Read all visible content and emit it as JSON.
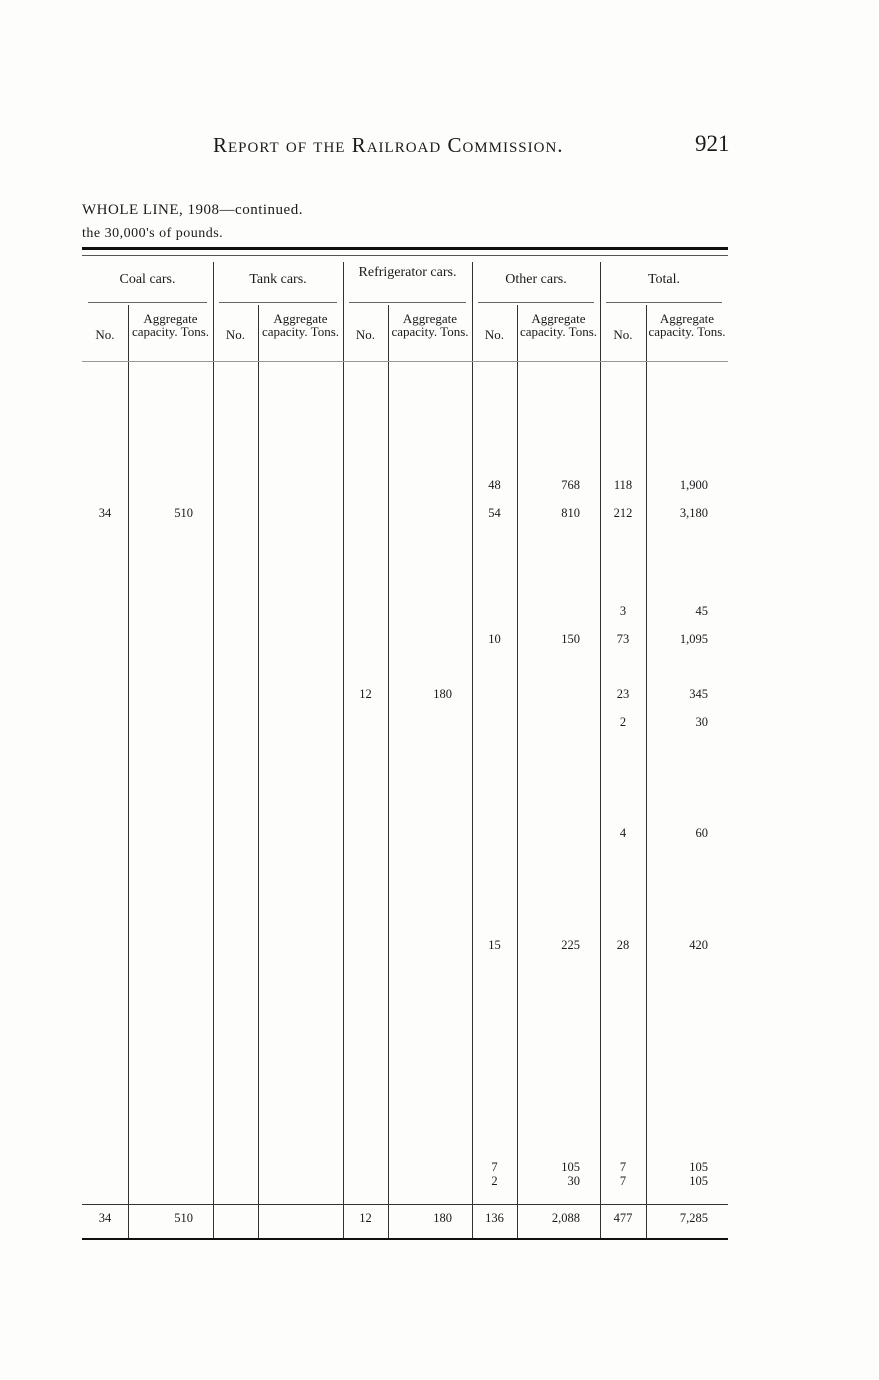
{
  "header": {
    "title": "Report of the Railroad Commission.",
    "page_number": "921"
  },
  "subtitle": {
    "line1": "WHOLE LINE, 1908—continued.",
    "line2": "the 30,000's of pounds."
  },
  "groups": [
    "Coal cars.",
    "Tank cars.",
    "Refrigerator cars.",
    "Other cars.",
    "Total."
  ],
  "subheaders": {
    "no": "No.",
    "aggregate": "Aggregate capacity. Tons."
  },
  "rows": [
    [
      "",
      "",
      "",
      "",
      "",
      "",
      "",
      "",
      "",
      ""
    ],
    [
      "",
      "",
      "",
      "",
      "",
      "",
      "",
      "",
      "",
      ""
    ],
    [
      "",
      "",
      "",
      "",
      "",
      "",
      "",
      "",
      "",
      ""
    ],
    [
      "",
      "",
      "",
      "",
      "",
      "",
      "",
      "",
      "",
      ""
    ],
    [
      "",
      "",
      "",
      "",
      "",
      "",
      "",
      "",
      "",
      ""
    ],
    [
      "",
      "",
      "",
      "",
      "",
      "",
      "",
      "",
      "",
      ""
    ],
    [
      "",
      "",
      "",
      "",
      "",
      "",
      "48",
      "768",
      "118",
      "1,900"
    ],
    [
      "",
      "",
      "",
      "",
      "",
      "",
      "",
      "",
      "",
      ""
    ],
    [
      "34",
      "510",
      "",
      "",
      "",
      "",
      "54",
      "810",
      "212",
      "3,180"
    ],
    [
      "",
      "",
      "",
      "",
      "",
      "",
      "",
      "",
      "",
      ""
    ],
    [
      "",
      "",
      "",
      "",
      "",
      "",
      "",
      "",
      "",
      ""
    ],
    [
      "",
      "",
      "",
      "",
      "",
      "",
      "",
      "",
      "",
      ""
    ],
    [
      "",
      "",
      "",
      "",
      "",
      "",
      "",
      "",
      "",
      ""
    ],
    [
      "",
      "",
      "",
      "",
      "",
      "",
      "",
      "",
      "",
      ""
    ],
    [
      "",
      "",
      "",
      "",
      "",
      "",
      "",
      "",
      "3",
      "45"
    ],
    [
      "",
      "",
      "",
      "",
      "",
      "",
      "10",
      "150",
      "73",
      "1,095"
    ],
    [
      "",
      "",
      "",
      "",
      "",
      "",
      "",
      "",
      "",
      ""
    ],
    [
      "",
      "",
      "",
      "",
      "",
      "",
      "",
      "",
      "",
      ""
    ],
    [
      "",
      "",
      "",
      "",
      "",
      "",
      "",
      "",
      "",
      ""
    ],
    [
      "",
      "",
      "",
      "",
      "12",
      "180",
      "",
      "",
      "23",
      "345"
    ],
    [
      "",
      "",
      "",
      "",
      "",
      "",
      "",
      "",
      "2",
      "30"
    ],
    [
      "",
      "",
      "",
      "",
      "",
      "",
      "",
      "",
      "",
      ""
    ],
    [
      "",
      "",
      "",
      "",
      "",
      "",
      "",
      "",
      "",
      ""
    ],
    [
      "",
      "",
      "",
      "",
      "",
      "",
      "",
      "",
      "",
      ""
    ],
    [
      "",
      "",
      "",
      "",
      "",
      "",
      "",
      "",
      "",
      ""
    ],
    [
      "",
      "",
      "",
      "",
      "",
      "",
      "",
      "",
      "",
      ""
    ],
    [
      "",
      "",
      "",
      "",
      "",
      "",
      "",
      "",
      "",
      ""
    ],
    [
      "",
      "",
      "",
      "",
      "",
      "",
      "",
      "",
      "4",
      "60"
    ],
    [
      "",
      "",
      "",
      "",
      "",
      "",
      "",
      "",
      "",
      ""
    ],
    [
      "",
      "",
      "",
      "",
      "",
      "",
      "",
      "",
      "",
      ""
    ],
    [
      "",
      "",
      "",
      "",
      "",
      "",
      "",
      "",
      "",
      ""
    ],
    [
      "",
      "",
      "",
      "",
      "",
      "",
      "",
      "",
      "",
      ""
    ],
    [
      "",
      "",
      "",
      "",
      "",
      "",
      "",
      "",
      "",
      ""
    ],
    [
      "",
      "",
      "",
      "",
      "",
      "",
      "",
      "",
      "",
      ""
    ],
    [
      "",
      "",
      "",
      "",
      "",
      "",
      "15",
      "225",
      "28",
      "420"
    ],
    [
      "",
      "",
      "",
      "",
      "",
      "",
      "",
      "",
      "",
      ""
    ],
    [
      "",
      "",
      "",
      "",
      "",
      "",
      "",
      "",
      "",
      ""
    ],
    [
      "",
      "",
      "",
      "",
      "",
      "",
      "",
      "",
      "",
      ""
    ],
    [
      "",
      "",
      "",
      "",
      "",
      "",
      "",
      "",
      "",
      ""
    ],
    [
      "",
      "",
      "",
      "",
      "",
      "",
      "",
      "",
      "",
      ""
    ],
    [
      "",
      "",
      "",
      "",
      "",
      "",
      "",
      "",
      "",
      ""
    ],
    [
      "",
      "",
      "",
      "",
      "",
      "",
      "",
      "",
      "",
      ""
    ],
    [
      "",
      "",
      "",
      "",
      "",
      "",
      "",
      "",
      "",
      ""
    ],
    [
      "",
      "",
      "",
      "",
      "",
      "",
      "",
      "",
      "",
      ""
    ],
    [
      "",
      "",
      "",
      "",
      "",
      "",
      "",
      "",
      "",
      ""
    ],
    [
      "",
      "",
      "",
      "",
      "",
      "",
      "",
      "",
      "",
      ""
    ],
    [
      "",
      "",
      "",
      "",
      "",
      "",
      "",
      "",
      "",
      ""
    ],
    [
      "",
      "",
      "",
      "",
      "",
      "",
      "7",
      "105",
      "7",
      "105"
    ],
    [
      "",
      "",
      "",
      "",
      "",
      "",
      "2",
      "30",
      "7",
      "105"
    ]
  ],
  "totals": [
    "34",
    "510",
    "",
    "",
    "12",
    "180",
    "136",
    "2,088",
    "477",
    "7,285"
  ]
}
